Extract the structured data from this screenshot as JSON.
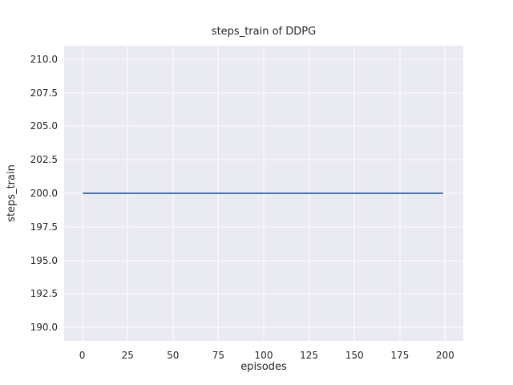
{
  "chart_data": {
    "type": "line",
    "title": "steps_train of DDPG",
    "xlabel": "episodes",
    "ylabel": "steps_train",
    "xlim": [
      -10,
      210
    ],
    "ylim": [
      189,
      211
    ],
    "x_ticks": [
      0,
      25,
      50,
      75,
      100,
      125,
      150,
      175,
      200
    ],
    "x_tick_labels": [
      "0",
      "25",
      "50",
      "75",
      "100",
      "125",
      "150",
      "175",
      "200"
    ],
    "y_ticks": [
      190.0,
      192.5,
      195.0,
      197.5,
      200.0,
      202.5,
      205.0,
      207.5,
      210.0
    ],
    "y_tick_labels": [
      "190.0",
      "192.5",
      "195.0",
      "197.5",
      "200.0",
      "202.5",
      "205.0",
      "207.5",
      "210.0"
    ],
    "grid": true,
    "legend": null,
    "colors": {
      "plot_background": "#eaeaf2",
      "grid_line": "#ffffff",
      "text": "#262626"
    },
    "series": [
      {
        "name": "steps_train",
        "color": "#4c72b0",
        "x": [
          0,
          199
        ],
        "y": [
          200,
          200
        ]
      }
    ]
  }
}
